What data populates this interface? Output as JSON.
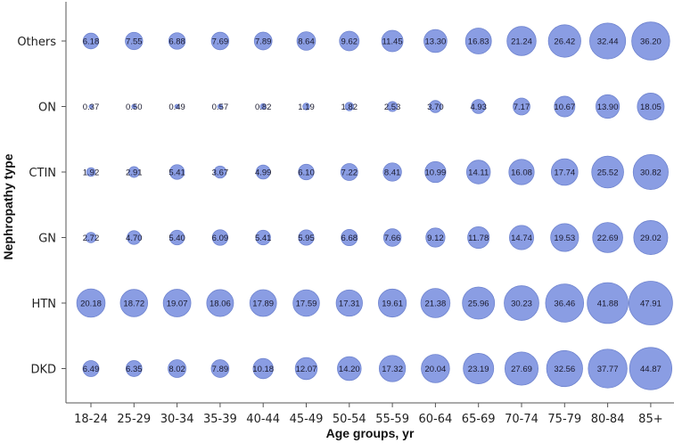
{
  "chart_data": {
    "type": "bubble",
    "title": "",
    "xlabel": "Age groups,  yr",
    "ylabel": "Nephropathy type",
    "grid": false,
    "bubble_color": "#8a9de3",
    "bubble_stroke": "#6f84cf",
    "x_categories": [
      "18-24",
      "25-29",
      "30-34",
      "35-39",
      "40-44",
      "45-49",
      "50-54",
      "55-59",
      "60-64",
      "65-69",
      "70-74",
      "75-79",
      "80-84",
      "85+"
    ],
    "y_categories": [
      "Others",
      "ON",
      "CTIN",
      "GN",
      "HTN",
      "DKD"
    ],
    "series": [
      {
        "name": "Others",
        "values": [
          "6.18",
          "7.55",
          "6.88",
          "7.69",
          "7.89",
          "8.64",
          "9.62",
          "11.45",
          "13.30",
          "16.83",
          "21.24",
          "26.42",
          "32.44",
          "36.20"
        ]
      },
      {
        "name": "ON",
        "values": [
          "0.37",
          "0.50",
          "0.49",
          "0.57",
          "0.82",
          "1.19",
          "1.82",
          "2.53",
          "3.70",
          "4.93",
          "7.17",
          "10.67",
          "13.90",
          "18.05"
        ]
      },
      {
        "name": "CTIN",
        "values": [
          "1.92",
          "2.91",
          "5.41",
          "3.67",
          "4.99",
          "6.10",
          "7.22",
          "8.41",
          "10.99",
          "14.11",
          "16.08",
          "17.74",
          "25.52",
          "30.82"
        ]
      },
      {
        "name": "GN",
        "values": [
          "2.72",
          "4.70",
          "5.40",
          "6.09",
          "5.41",
          "5.95",
          "6.68",
          "7.66",
          "9.12",
          "11.78",
          "14.74",
          "19.53",
          "22.69",
          "29.02"
        ]
      },
      {
        "name": "HTN",
        "values": [
          "20.18",
          "18.72",
          "19.07",
          "18.06",
          "17.89",
          "17.59",
          "17.31",
          "19.61",
          "21.38",
          "25.96",
          "30.23",
          "36.46",
          "41.88",
          "47.91"
        ]
      },
      {
        "name": "DKD",
        "values": [
          "6.49",
          "6.35",
          "8.02",
          "7.89",
          "10.18",
          "12.07",
          "14.20",
          "17.32",
          "20.04",
          "23.19",
          "27.69",
          "32.56",
          "37.77",
          "44.87"
        ]
      }
    ]
  }
}
